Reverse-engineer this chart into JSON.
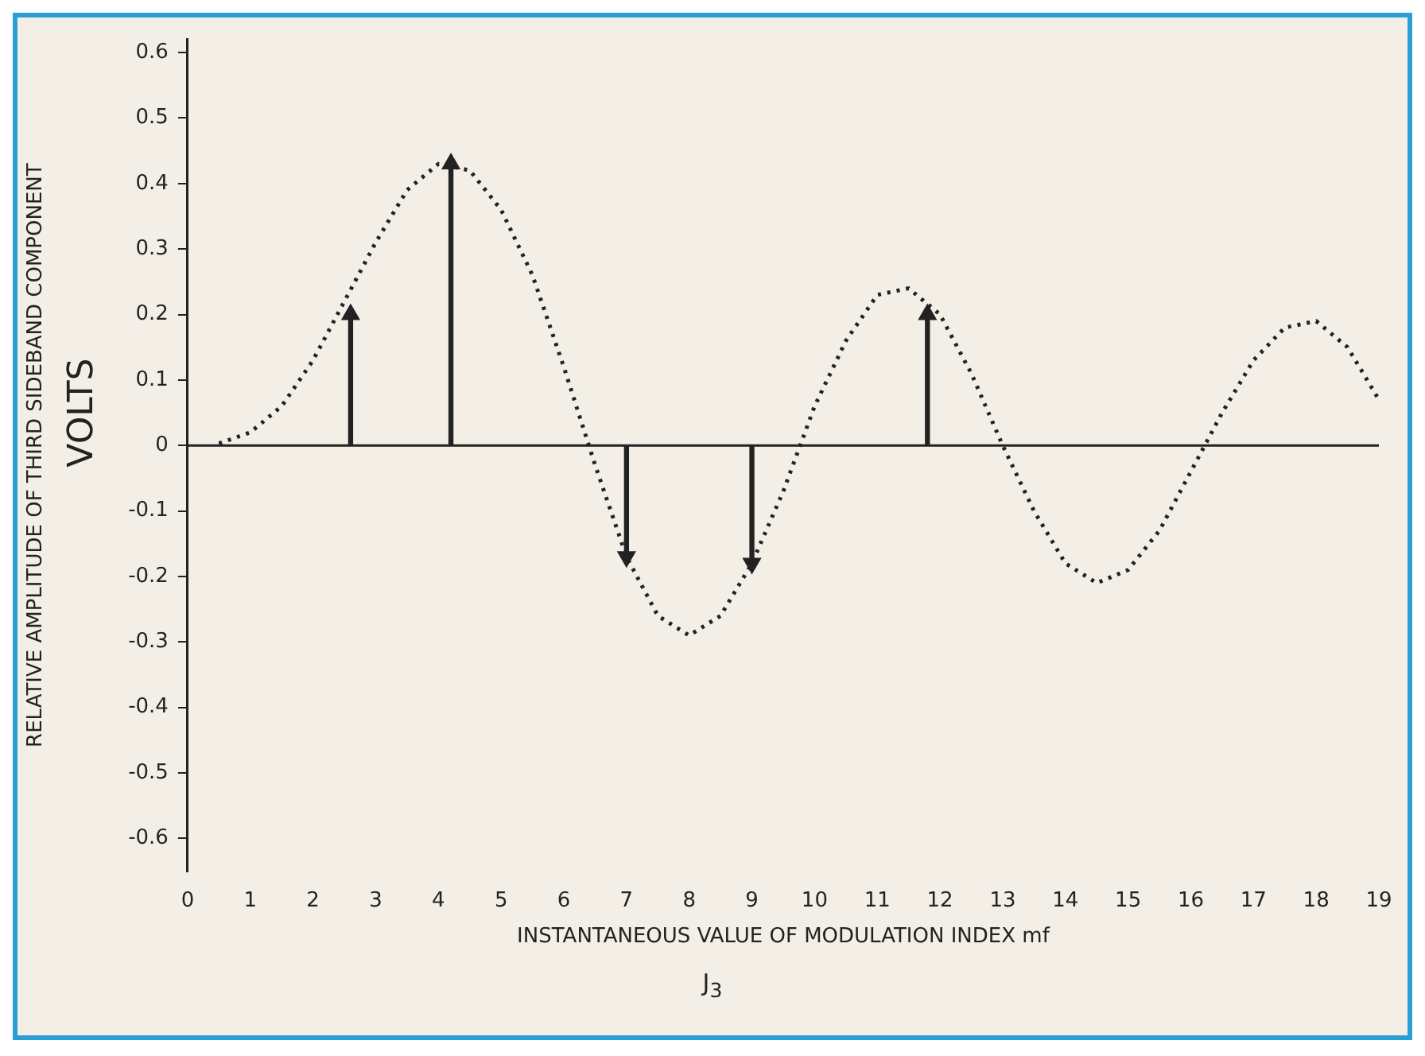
{
  "chart_data": {
    "type": "line",
    "xlabel": "INSTANTANEOUS VALUE OF MODULATION INDEX mf",
    "ylabel": "RELATIVE AMPLITUDE OF THIRD SIDEBAND COMPONENT",
    "annotations": [
      "VOLTS",
      "J$_{3}$"
    ],
    "series": [
      {
        "color": "#222222",
        "x": [
          0.5,
          1,
          1.5,
          2,
          2.5,
          3,
          3.5,
          4,
          4.5,
          5,
          5.5,
          6,
          6.5,
          7,
          7.5,
          8,
          8.5,
          9,
          9.5,
          10,
          10.5,
          11,
          11.5,
          12,
          12.5,
          13,
          13.5,
          14,
          14.5,
          15,
          15.5,
          16,
          16.5,
          17,
          17.5,
          18,
          18.5,
          19
        ],
        "values": [
          0.003,
          0.02,
          0.06,
          0.13,
          0.22,
          0.31,
          0.39,
          0.43,
          0.42,
          0.36,
          0.26,
          0.12,
          -0.03,
          -0.17,
          -0.26,
          -0.29,
          -0.26,
          -0.18,
          -0.07,
          0.06,
          0.16,
          0.23,
          0.24,
          0.2,
          0.11,
          0,
          -0.1,
          -0.18,
          -0.21,
          -0.19,
          -0.13,
          -0.04,
          0.05,
          0.13,
          0.18,
          0.19,
          0.15,
          0.07
        ]
      },
      {
        "type": "bar",
        "color": "#222222",
        "x": [
          2.6,
          4.2,
          7,
          9,
          11.8
        ],
        "values": [
          0.2,
          0.43,
          -0.17,
          -0.18,
          0.2
        ]
      },
      {
        "type": "scatter",
        "marker": "triangle",
        "color": "#222222",
        "x": [
          2.6,
          4.2,
          7,
          9,
          11.8
        ],
        "values": [
          0.2,
          0.43,
          -0.17,
          -0.18,
          0.2
        ]
      }
    ],
    "xlim": [
      0,
      19
    ],
    "xticks": [
      0,
      1,
      2,
      3,
      4,
      5,
      6,
      7,
      8,
      9,
      10,
      11,
      12,
      13,
      14,
      15,
      16,
      17,
      18,
      19
    ],
    "ylim": [
      -0.65,
      0.62
    ],
    "yticks": [
      -0.6,
      -0.5,
      -0.4,
      -0.3,
      -0.2,
      -0.1,
      0,
      0.1,
      0.2,
      0.3,
      0.4,
      0.5,
      0.6
    ],
    "ref_lines": [
      {
        "axis": "y",
        "value": 0
      }
    ],
    "grid": false,
    "legend": false,
    "line_style": "dotted"
  }
}
